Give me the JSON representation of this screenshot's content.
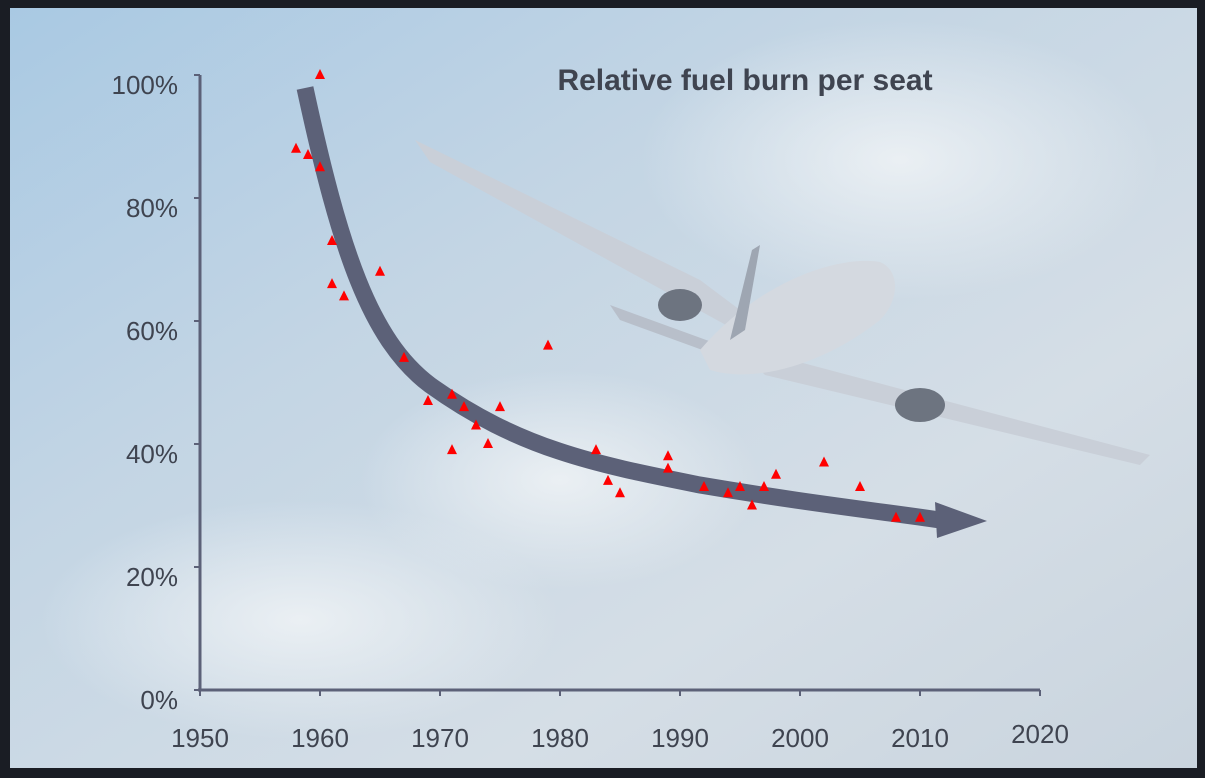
{
  "chart_data": {
    "type": "scatter",
    "title": "Relative fuel burn per seat",
    "x": [
      1958,
      1959,
      1960,
      1960,
      1961,
      1961,
      1962,
      1965,
      1967,
      1969,
      1971,
      1971,
      1972,
      1973,
      1974,
      1975,
      1979,
      1983,
      1984,
      1985,
      1989,
      1989,
      1992,
      1994,
      1995,
      1996,
      1997,
      1998,
      2002,
      2005,
      2008,
      2010
    ],
    "values": [
      88,
      87,
      100,
      85,
      73,
      66,
      64,
      68,
      54,
      47,
      48,
      39,
      46,
      43,
      40,
      46,
      56,
      39,
      34,
      32,
      38,
      36,
      33,
      32,
      33,
      30,
      33,
      35,
      37,
      33,
      28,
      28
    ],
    "color": "#ff0000",
    "xlim": [
      1950,
      2020
    ],
    "xticks": [
      1950,
      1960,
      1970,
      1980,
      1990,
      2000,
      2010,
      2020
    ],
    "ylim": [
      0,
      100
    ],
    "yticks": [
      {
        "value": 0,
        "label": "0%"
      },
      {
        "value": 20,
        "label": "20%"
      },
      {
        "value": 40,
        "label": "40%"
      },
      {
        "value": 60,
        "label": "60%"
      },
      {
        "value": 80,
        "label": "80%"
      },
      {
        "value": 100,
        "label": "100%"
      }
    ]
  }
}
